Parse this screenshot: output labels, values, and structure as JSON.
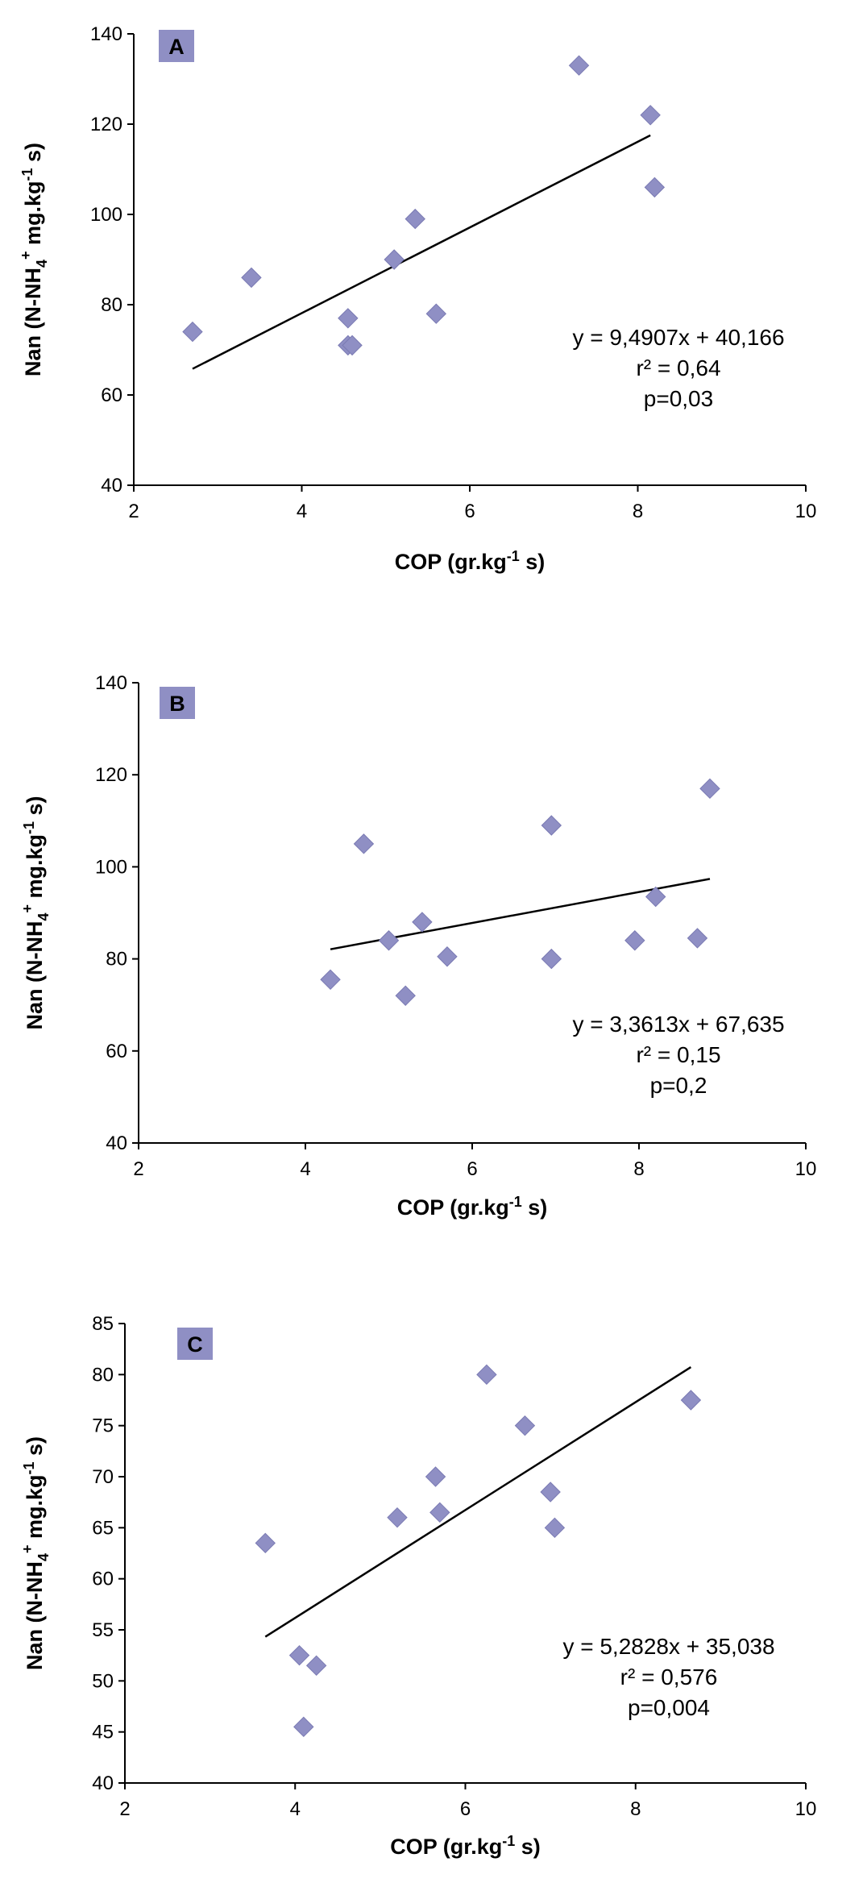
{
  "chart_data": [
    {
      "type": "scatter",
      "panel_label": "A",
      "xlabel": "COP (gr.kg-1 s)",
      "ylabel": "Nan (N-NH4+ mg.kg-1 s)",
      "xlim": [
        2,
        10
      ],
      "ylim": [
        40,
        140
      ],
      "xticks": [
        2,
        4,
        6,
        8,
        10
      ],
      "yticks": [
        40,
        60,
        80,
        100,
        120,
        140
      ],
      "points": [
        {
          "x": 2.7,
          "y": 74
        },
        {
          "x": 3.4,
          "y": 86
        },
        {
          "x": 4.55,
          "y": 77
        },
        {
          "x": 4.55,
          "y": 71
        },
        {
          "x": 4.6,
          "y": 71
        },
        {
          "x": 5.1,
          "y": 90
        },
        {
          "x": 5.35,
          "y": 99
        },
        {
          "x": 5.6,
          "y": 78
        },
        {
          "x": 7.3,
          "y": 133
        },
        {
          "x": 8.15,
          "y": 122
        },
        {
          "x": 8.2,
          "y": 106
        }
      ],
      "trendline": {
        "slope": 9.4907,
        "intercept": 40.166,
        "x_range": [
          2.7,
          8.15
        ]
      },
      "equation": "y = 9,4907x + 40,166",
      "r2": "r² = 0,64",
      "p": "p=0,03"
    },
    {
      "type": "scatter",
      "panel_label": "B",
      "xlabel": "COP (gr.kg-1 s)",
      "ylabel": "Nan (N-NH4+ mg.kg-1 s)",
      "xlim": [
        2,
        10
      ],
      "ylim": [
        40,
        140
      ],
      "xticks": [
        2,
        4,
        6,
        8,
        10
      ],
      "yticks": [
        40,
        60,
        80,
        100,
        120,
        140
      ],
      "points": [
        {
          "x": 4.3,
          "y": 75.5
        },
        {
          "x": 4.7,
          "y": 105
        },
        {
          "x": 5.0,
          "y": 84
        },
        {
          "x": 5.2,
          "y": 72
        },
        {
          "x": 5.4,
          "y": 88
        },
        {
          "x": 5.7,
          "y": 80.5
        },
        {
          "x": 6.95,
          "y": 80
        },
        {
          "x": 6.95,
          "y": 109
        },
        {
          "x": 7.95,
          "y": 84
        },
        {
          "x": 8.2,
          "y": 93.5
        },
        {
          "x": 8.7,
          "y": 84.5
        },
        {
          "x": 8.85,
          "y": 117
        }
      ],
      "trendline": {
        "slope": 3.3613,
        "intercept": 67.635,
        "x_range": [
          4.3,
          8.85
        ]
      },
      "equation": "y = 3,3613x + 67,635",
      "r2": "r² = 0,15",
      "p": "p=0,2"
    },
    {
      "type": "scatter",
      "panel_label": "C",
      "xlabel": "COP (gr.kg-1 s)",
      "ylabel": "Nan (N-NH4+ mg.kg-1 s)",
      "xlim": [
        2,
        10
      ],
      "ylim": [
        40,
        85
      ],
      "xticks": [
        2,
        4,
        6,
        8,
        10
      ],
      "yticks": [
        40,
        45,
        50,
        55,
        60,
        65,
        70,
        75,
        80,
        85
      ],
      "points": [
        {
          "x": 3.65,
          "y": 63.5
        },
        {
          "x": 4.05,
          "y": 52.5
        },
        {
          "x": 4.1,
          "y": 45.5
        },
        {
          "x": 4.25,
          "y": 51.5
        },
        {
          "x": 5.2,
          "y": 66
        },
        {
          "x": 5.65,
          "y": 70
        },
        {
          "x": 5.7,
          "y": 66.5
        },
        {
          "x": 6.25,
          "y": 80
        },
        {
          "x": 6.7,
          "y": 75
        },
        {
          "x": 7.0,
          "y": 68.5
        },
        {
          "x": 7.05,
          "y": 65
        },
        {
          "x": 8.65,
          "y": 77.5
        }
      ],
      "trendline": {
        "slope": 5.2828,
        "intercept": 35.038,
        "x_range": [
          3.65,
          8.65
        ]
      },
      "equation": "y = 5,2828x + 35,038",
      "r2": "r² = 0,576",
      "p": "p=0,004"
    }
  ],
  "colors": {
    "marker": "#8f8fc4",
    "marker_stroke": "#7a7ab3",
    "badge": "#8f8fc4",
    "line": "#000000",
    "axis": "#000000"
  }
}
